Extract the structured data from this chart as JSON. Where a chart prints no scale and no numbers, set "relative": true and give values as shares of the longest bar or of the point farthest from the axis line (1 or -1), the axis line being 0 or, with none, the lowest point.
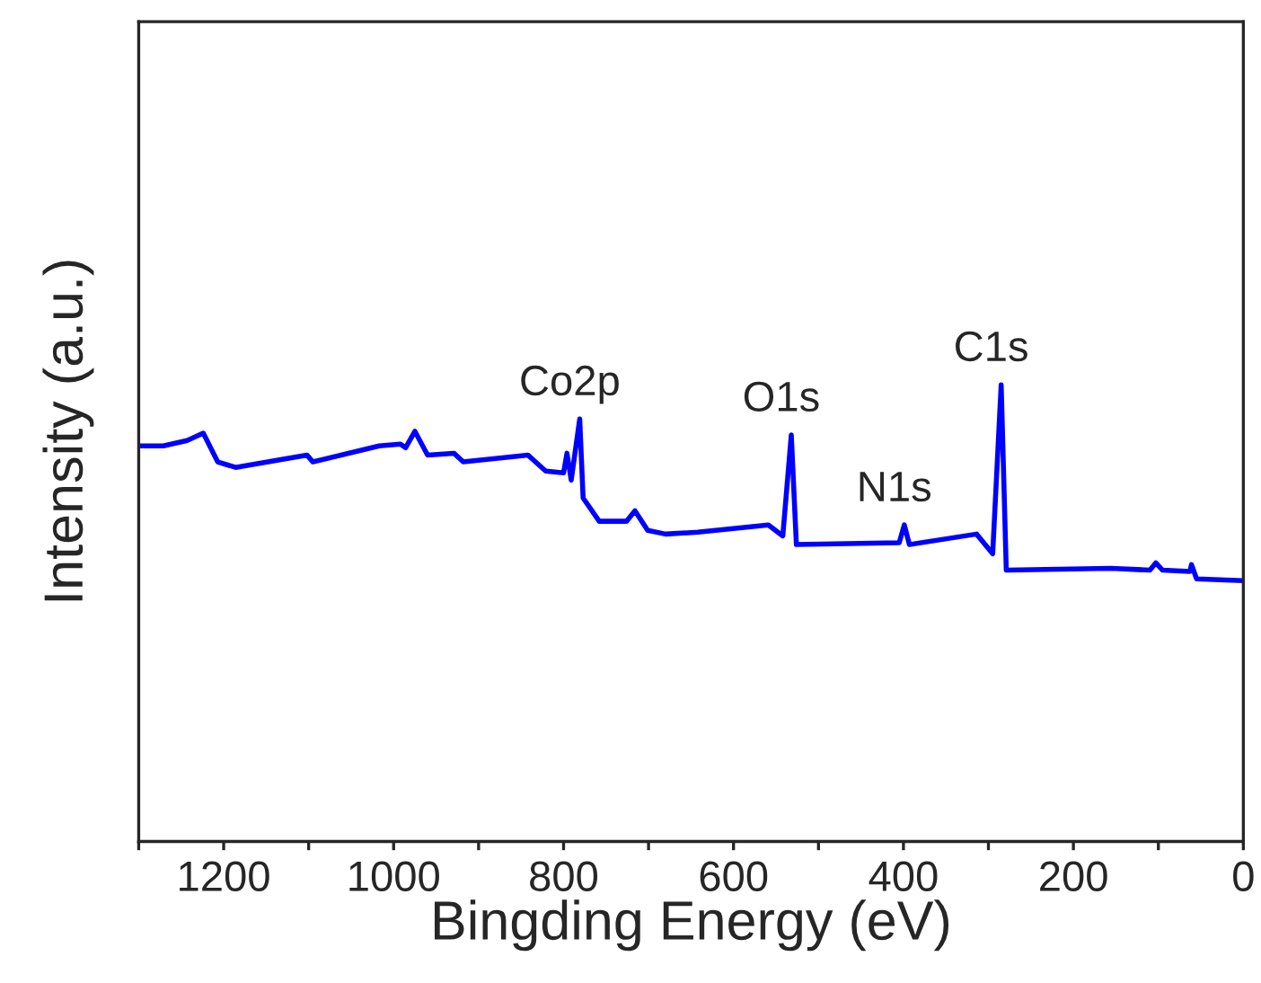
{
  "chart_data": {
    "type": "line",
    "xlabel": "Bingding Energy (eV)",
    "ylabel": "Intensity (a.u.)",
    "relative": true,
    "xlim": [
      1300,
      0
    ],
    "xticks": [
      {
        "value": 1300,
        "label": null
      },
      1200,
      {
        "value": 1100,
        "label": null
      },
      1000,
      {
        "value": 900,
        "label": null
      },
      800,
      {
        "value": 700,
        "label": null
      },
      600,
      {
        "value": 500,
        "label": null
      },
      400,
      {
        "value": 300,
        "label": null
      },
      200,
      {
        "value": 100,
        "label": null
      },
      0
    ],
    "tick_labels": "x",
    "grid": false,
    "legend": false,
    "marker": "none",
    "line_style": "solid",
    "series": [
      {
        "color": "#0000ff",
        "x": [
          1298,
          1271,
          1243,
          1224,
          1207,
          1186,
          1102,
          1095,
          1017,
          992,
          986,
          975,
          960,
          929,
          918,
          842,
          821,
          800,
          796,
          791,
          781,
          777,
          758,
          726,
          716,
          701,
          680,
          642,
          559,
          542,
          532,
          526,
          405,
          399,
          393,
          314,
          295,
          285,
          279,
          156,
          110,
          103,
          95,
          63,
          61,
          55,
          0
        ],
        "values": [
          0.866,
          0.866,
          0.878,
          0.894,
          0.831,
          0.819,
          0.846,
          0.831,
          0.866,
          0.87,
          0.862,
          0.898,
          0.846,
          0.85,
          0.831,
          0.846,
          0.811,
          0.807,
          0.85,
          0.791,
          0.925,
          0.752,
          0.701,
          0.701,
          0.724,
          0.681,
          0.673,
          0.677,
          0.693,
          0.669,
          0.89,
          0.65,
          0.654,
          0.693,
          0.65,
          0.673,
          0.63,
          1.0,
          0.594,
          0.598,
          0.594,
          0.61,
          0.594,
          0.591,
          0.606,
          0.575,
          0.571
        ]
      }
    ],
    "annotations": [
      {
        "text": "Co2p",
        "x": 781,
        "y": 0.925
      },
      {
        "text": "O1s",
        "x": 532,
        "y": 0.89
      },
      {
        "text": "N1s",
        "x": 399,
        "y": 0.693
      },
      {
        "text": "C1s",
        "x": 285,
        "y": 1.0
      }
    ]
  }
}
